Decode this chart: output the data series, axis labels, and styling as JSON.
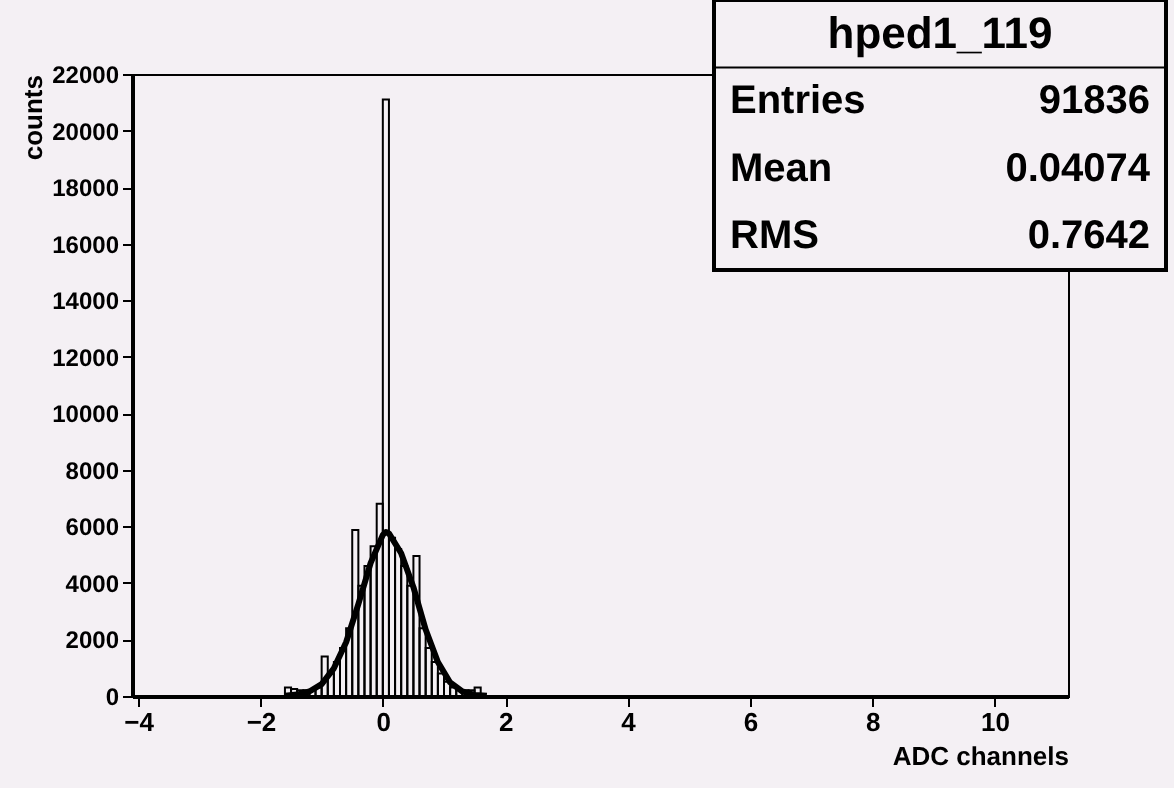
{
  "chart_data": {
    "type": "histogram",
    "title": "hped1_119",
    "xlabel": "ADC channels",
    "ylabel": "counts",
    "annotations": [
      "Entries 91836",
      "Mean 0.04074",
      "RMS 0.7642"
    ],
    "xlim": [
      -4.1,
      11.2
    ],
    "ylim": [
      0,
      22000
    ],
    "xticks": [
      -4,
      -2,
      0,
      2,
      4,
      6,
      8,
      10
    ],
    "yticks": [
      0,
      2000,
      4000,
      6000,
      8000,
      10000,
      12000,
      14000,
      16000,
      18000,
      20000,
      22000
    ],
    "grid": false,
    "series": [
      {
        "color": "#000000",
        "bins": [
          -1.6,
          -1.5,
          -1.4,
          -1.3,
          -1.2,
          -1.1,
          -1.0,
          -0.9,
          -0.8,
          -0.7,
          -0.6,
          -0.5,
          -0.4,
          -0.3,
          -0.2,
          -0.1,
          0.0,
          0.1,
          0.2,
          0.3,
          0.4,
          0.5,
          0.6,
          0.7,
          0.8,
          0.9,
          1.0,
          1.1,
          1.2,
          1.3,
          1.4,
          1.5,
          1.6
        ],
        "values": [
          300,
          250,
          200,
          200,
          200,
          300,
          1400,
          800,
          1200,
          1700,
          2400,
          5870,
          3900,
          4600,
          5300,
          6800,
          21100,
          5600,
          5200,
          4600,
          3900,
          4950,
          2400,
          1700,
          1200,
          800,
          500,
          300,
          200,
          200,
          200,
          300
        ]
      },
      {
        "type": "line",
        "color": "#000000",
        "x": [
          -1.6,
          -1.4,
          -1.2,
          -1.0,
          -0.8,
          -0.6,
          -0.4,
          -0.2,
          0.0,
          0.05,
          0.1,
          0.3,
          0.5,
          0.7,
          0.9,
          1.1,
          1.3,
          1.5,
          1.7
        ],
        "values": [
          10,
          50,
          160,
          420,
          980,
          1900,
          3250,
          4700,
          5700,
          5800,
          5750,
          5050,
          3850,
          2350,
          1200,
          480,
          160,
          40,
          10
        ]
      }
    ]
  }
}
